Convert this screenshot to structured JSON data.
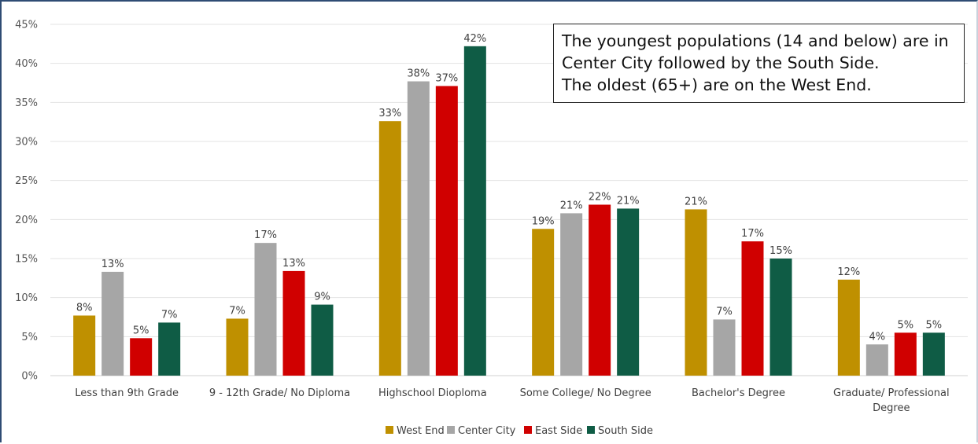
{
  "callout": {
    "lines": [
      "The youngest populations (14 and below) are in",
      "Center City followed by the South Side.",
      "The oldest (65+) are on the West End."
    ]
  },
  "chart_data": {
    "type": "bar",
    "title": "",
    "xlabel": "",
    "ylabel": "",
    "ylim": [
      0,
      45
    ],
    "y_ticks": [
      "0%",
      "5%",
      "10%",
      "15%",
      "20%",
      "25%",
      "30%",
      "35%",
      "40%",
      "45%"
    ],
    "grid": true,
    "legend_position": "bottom",
    "categories": [
      [
        "Less than 9th Grade"
      ],
      [
        "9 - 12th Grade/ No Diploma"
      ],
      [
        "Highschool Dioploma"
      ],
      [
        "Some College/ No Degree"
      ],
      [
        "Bachelor's Degree"
      ],
      [
        "Graduate/ Professional",
        "Degree"
      ]
    ],
    "series": [
      {
        "name": "West End",
        "color": "#bf9000",
        "values": [
          7.7,
          7.3,
          32.6,
          18.8,
          21.3,
          12.3
        ],
        "labels": [
          "8%",
          "7%",
          "33%",
          "19%",
          "21%",
          "12%"
        ]
      },
      {
        "name": "Center City",
        "color": "#a6a6a6",
        "values": [
          13.3,
          17.0,
          37.7,
          20.8,
          7.2,
          4.0
        ],
        "labels": [
          "13%",
          "17%",
          "38%",
          "21%",
          "7%",
          "4%"
        ]
      },
      {
        "name": "East Side",
        "color": "#d00000",
        "values": [
          4.8,
          13.4,
          37.1,
          21.9,
          17.2,
          5.5
        ],
        "labels": [
          "5%",
          "13%",
          "37%",
          "22%",
          "17%",
          "5%"
        ]
      },
      {
        "name": "South Side",
        "color": "#0f5c45",
        "values": [
          6.8,
          9.1,
          42.2,
          21.4,
          15.0,
          5.5
        ],
        "labels": [
          "7%",
          "9%",
          "42%",
          "21%",
          "15%",
          "5%"
        ]
      }
    ]
  }
}
